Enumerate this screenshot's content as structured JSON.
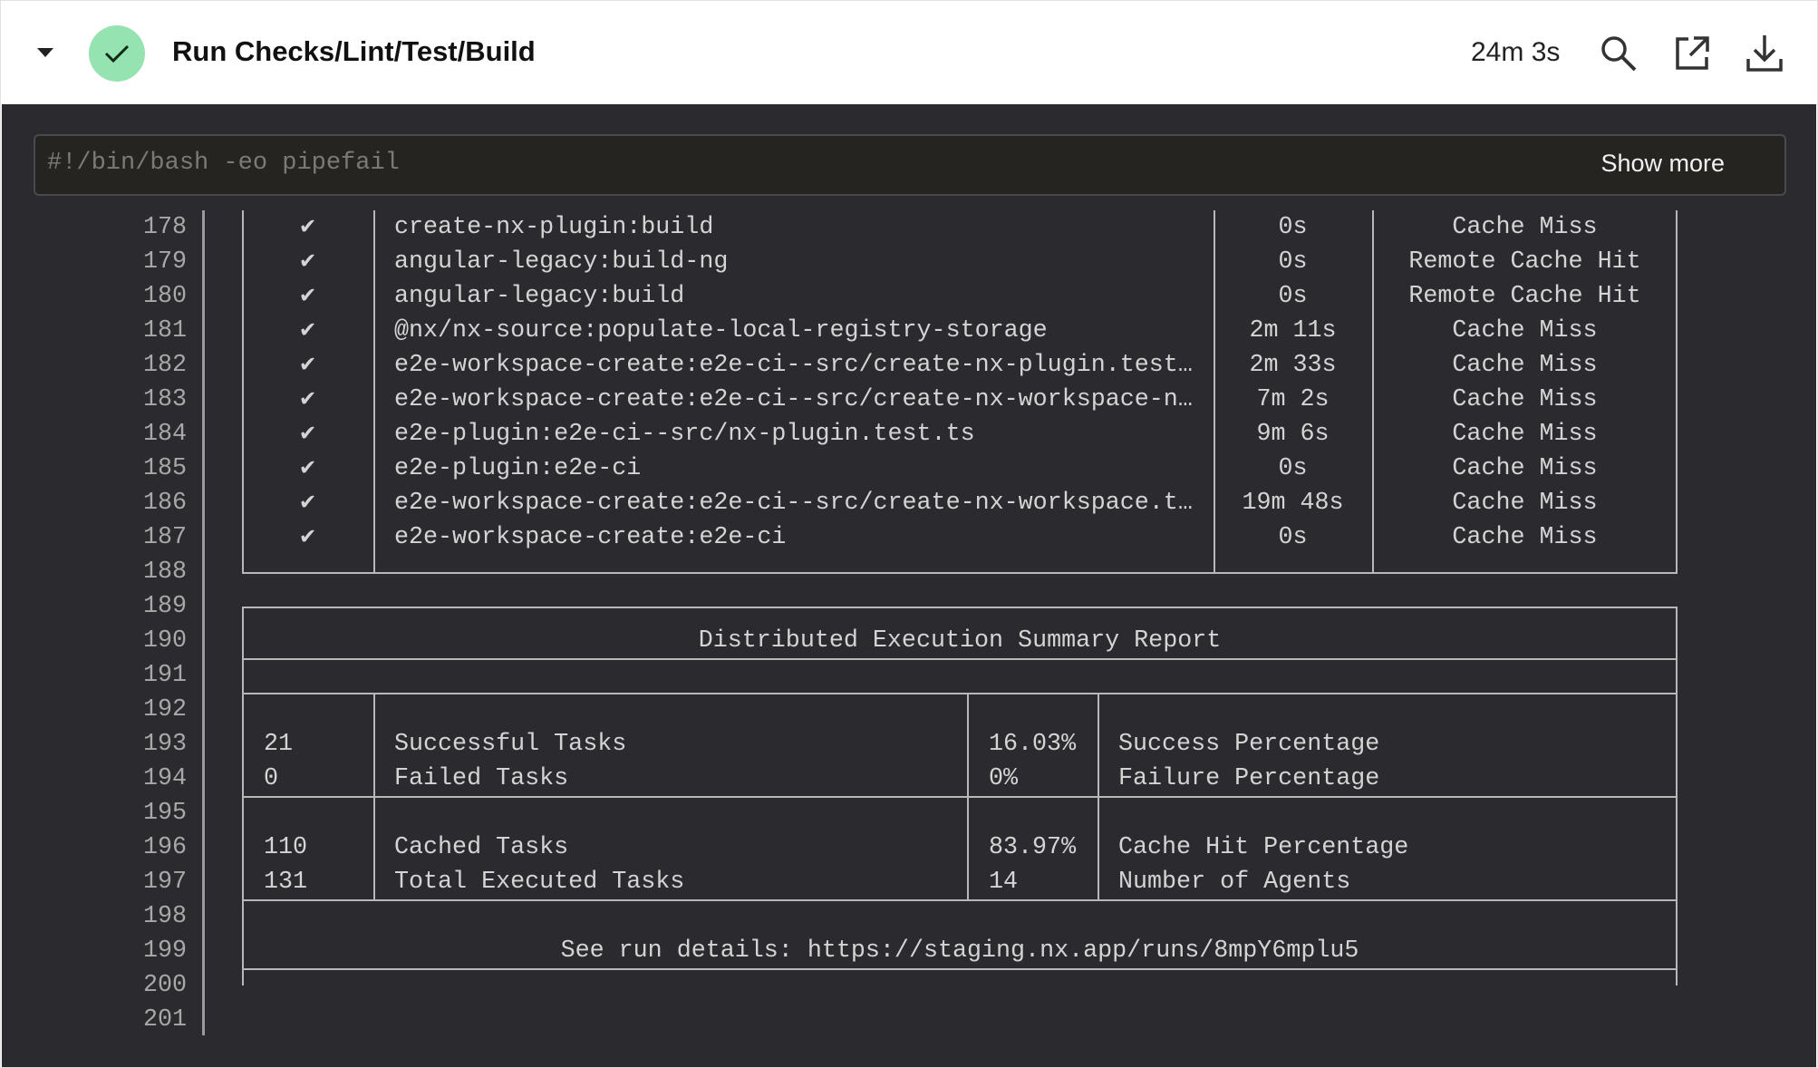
{
  "header": {
    "title": "Run Checks/Lint/Test/Build",
    "duration": "24m 3s",
    "status": "success",
    "status_color": "#96e3b2",
    "icons": [
      "chevron-down-icon",
      "check-icon",
      "search-icon",
      "external-link-icon",
      "download-icon"
    ]
  },
  "command": {
    "text": "#!/bin/bash -eo pipefail",
    "show_more_label": "Show more"
  },
  "line_numbers": [
    "178",
    "179",
    "180",
    "181",
    "182",
    "183",
    "184",
    "185",
    "186",
    "187",
    "188",
    "189",
    "190",
    "191",
    "192",
    "193",
    "194",
    "195",
    "196",
    "197",
    "198",
    "199",
    "200",
    "201"
  ],
  "tasks": [
    {
      "check": "✔",
      "name": "create-nx-plugin:build",
      "duration": "0s",
      "cache": "Cache Miss"
    },
    {
      "check": "✔",
      "name": "angular-legacy:build-ng",
      "duration": "0s",
      "cache": "Remote Cache Hit"
    },
    {
      "check": "✔",
      "name": "angular-legacy:build",
      "duration": "0s",
      "cache": "Remote Cache Hit"
    },
    {
      "check": "✔",
      "name": "@nx/nx-source:populate-local-registry-storage",
      "duration": "2m 11s",
      "cache": "Cache Miss"
    },
    {
      "check": "✔",
      "name": "e2e-workspace-create:e2e-ci--src/create-nx-plugin.test…",
      "duration": "2m 33s",
      "cache": "Cache Miss"
    },
    {
      "check": "✔",
      "name": "e2e-workspace-create:e2e-ci--src/create-nx-workspace-n…",
      "duration": "7m 2s",
      "cache": "Cache Miss"
    },
    {
      "check": "✔",
      "name": "e2e-plugin:e2e-ci--src/nx-plugin.test.ts",
      "duration": "9m 6s",
      "cache": "Cache Miss"
    },
    {
      "check": "✔",
      "name": "e2e-plugin:e2e-ci",
      "duration": "0s",
      "cache": "Cache Miss"
    },
    {
      "check": "✔",
      "name": "e2e-workspace-create:e2e-ci--src/create-nx-workspace.t…",
      "duration": "19m 48s",
      "cache": "Cache Miss"
    },
    {
      "check": "✔",
      "name": "e2e-workspace-create:e2e-ci",
      "duration": "0s",
      "cache": "Cache Miss"
    }
  ],
  "summary": {
    "title": "Distributed Execution Summary Report",
    "rows": [
      {
        "count": "21",
        "label": "Successful Tasks",
        "value": "16.03%",
        "value_label": "Success Percentage"
      },
      {
        "count": "0",
        "label": "Failed Tasks",
        "value": "0%",
        "value_label": "Failure Percentage"
      },
      {
        "count": "110",
        "label": "Cached Tasks",
        "value": "83.97%",
        "value_label": "Cache Hit Percentage"
      },
      {
        "count": "131",
        "label": "Total Executed Tasks",
        "value": "14",
        "value_label": "Number of Agents"
      }
    ],
    "run_details": "See run details: https://staging.nx.app/runs/8mpY6mplu5"
  }
}
